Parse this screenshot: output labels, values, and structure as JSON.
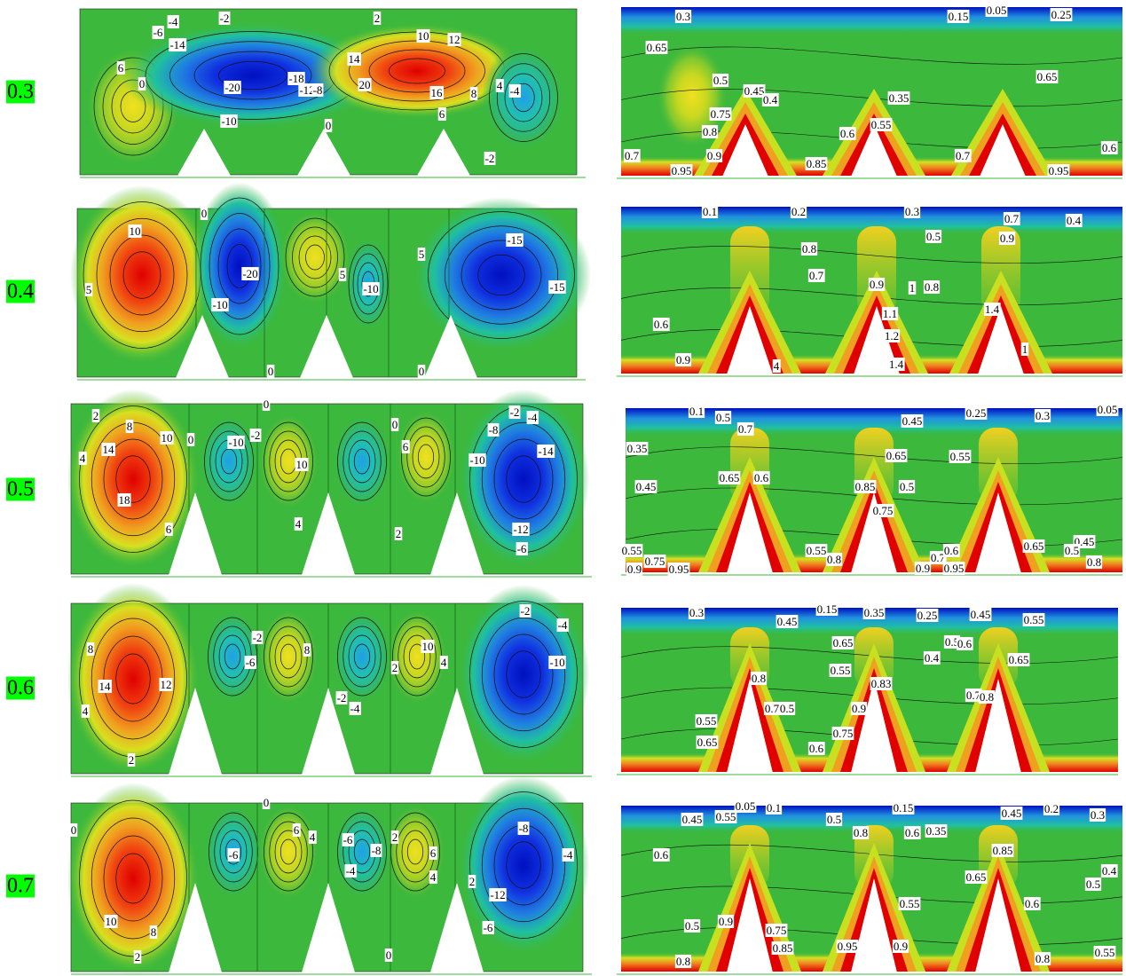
{
  "rows": [
    {
      "label": "0.3",
      "left": [
        "-4",
        "-2",
        "-6",
        "-14",
        "6",
        "0",
        "-20",
        "-18",
        "-12",
        "-8",
        "-10",
        "0",
        "2",
        "10",
        "12",
        "14",
        "20",
        "16",
        "8",
        "4",
        "-4",
        "6",
        "-2"
      ],
      "right": [
        "0.3",
        "0.15",
        "0.05",
        "0.25",
        "0.65",
        "0.5",
        "0.45",
        "0.4",
        "0.35",
        "0.65",
        "0.75",
        "0.8",
        "0.9",
        "0.6",
        "0.55",
        "0.85",
        "0.7",
        "0.7",
        "0.95",
        "0.95",
        "0.6"
      ]
    },
    {
      "label": "0.4",
      "left": [
        "0",
        "10",
        "5",
        "-20",
        "-10",
        "5",
        "-10",
        "5",
        "-15",
        "-15",
        "0",
        "0"
      ],
      "right": [
        "0.1",
        "0.2",
        "0.3",
        "0.7",
        "0.4",
        "0.8",
        "0.7",
        "0.5",
        "0.9",
        "0.9",
        "1",
        "0.8",
        "0.6",
        "1.1",
        "1.2",
        "1.4",
        "0.9",
        "1.4",
        "1",
        "4"
      ]
    },
    {
      "label": "0.5",
      "left": [
        "0",
        "2",
        "8",
        "10",
        "4",
        "14",
        "18",
        "6",
        "0",
        "-10",
        "-2",
        "10",
        "4",
        "0",
        "6",
        "2",
        "-2",
        "-4",
        "-8",
        "-10",
        "-14",
        "-12",
        "-6"
      ],
      "right": [
        "0.1",
        "0.5",
        "0.7",
        "0.45",
        "0.25",
        "0.3",
        "0.05",
        "0.35",
        "0.45",
        "0.65",
        "0.55",
        "0.65",
        "0.6",
        "0.85",
        "0.5",
        "0.75",
        "0.55",
        "0.75",
        "0.9",
        "0.95",
        "0.55",
        "0.8",
        "0.7",
        "0.6",
        "0.9",
        "0.95",
        "0.65",
        "0.45",
        "0.5",
        "0.8"
      ]
    },
    {
      "label": "0.6",
      "left": [
        "8",
        "14",
        "12",
        "4",
        "2",
        "-2",
        "-6",
        "8",
        "-2",
        "-4",
        "2",
        "10",
        "4",
        "-2",
        "-4",
        "-10"
      ],
      "right": [
        "0.3",
        "0.45",
        "0.15",
        "0.35",
        "0.25",
        "0.45",
        "0.55",
        "0.65",
        "0.55",
        "0.4",
        "0.5",
        "0.6",
        "0.65",
        "0.8",
        "0.7",
        "0.5",
        "0.83",
        "0.9",
        "0.75",
        "0.7",
        "0.8",
        "0.55",
        "0.65",
        "0.6"
      ]
    },
    {
      "label": "0.7",
      "left": [
        "0",
        "0",
        "10",
        "8",
        "2",
        "-6",
        "6",
        "4",
        "-6",
        "-8",
        "2",
        "-4",
        "6",
        "4",
        "2",
        "-8",
        "-4",
        "-12",
        "-6",
        "0"
      ],
      "right": [
        "0.45",
        "0.55",
        "0.05",
        "0.1",
        "0.15",
        "0.45",
        "0.2",
        "0.3",
        "0.6",
        "0.5",
        "0.8",
        "0.6",
        "0.35",
        "0.65",
        "0.85",
        "0.4",
        "0.5",
        "0.5",
        "0.9",
        "0.75",
        "0.85",
        "0.95",
        "0.9",
        "0.55",
        "0.6",
        "0.8",
        "0.8",
        "0.55"
      ]
    }
  ]
}
